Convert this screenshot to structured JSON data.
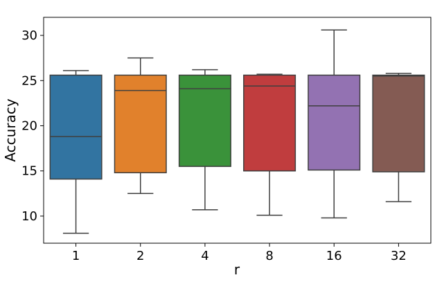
{
  "chart_data": {
    "type": "box",
    "xlabel": "r",
    "ylabel": "Accuracy",
    "categories": [
      "1",
      "2",
      "4",
      "8",
      "16",
      "32"
    ],
    "ylim": [
      7,
      32
    ],
    "yticks": [
      10,
      15,
      20,
      25,
      30
    ],
    "grid": false,
    "legend": "none",
    "boxes": [
      {
        "label": "1",
        "whisker_low": 8.1,
        "q1": 14.1,
        "median": 18.8,
        "q3": 25.6,
        "whisker_high": 26.1,
        "color": "#3274a1"
      },
      {
        "label": "2",
        "whisker_low": 12.5,
        "q1": 14.8,
        "median": 23.9,
        "q3": 25.6,
        "whisker_high": 27.5,
        "color": "#e1812c"
      },
      {
        "label": "4",
        "whisker_low": 10.7,
        "q1": 15.5,
        "median": 24.1,
        "q3": 25.6,
        "whisker_high": 26.2,
        "color": "#3a923a"
      },
      {
        "label": "8",
        "whisker_low": 10.1,
        "q1": 15.0,
        "median": 24.4,
        "q3": 25.6,
        "whisker_high": 25.7,
        "color": "#c03d3e"
      },
      {
        "label": "16",
        "whisker_low": 9.8,
        "q1": 15.1,
        "median": 22.2,
        "q3": 25.6,
        "whisker_high": 30.6,
        "color": "#9372b2"
      },
      {
        "label": "32",
        "whisker_low": 11.6,
        "q1": 14.9,
        "median": 25.5,
        "q3": 25.6,
        "whisker_high": 25.8,
        "color": "#845b53"
      }
    ]
  }
}
